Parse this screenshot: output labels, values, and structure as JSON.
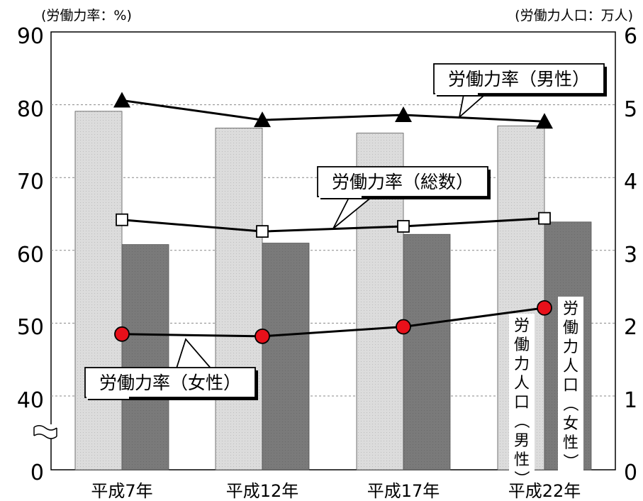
{
  "chart_data": {
    "type": "bar",
    "categories": [
      "平成7年",
      "平成12年",
      "平成17年",
      "平成22年"
    ],
    "title": "",
    "y_left": {
      "label": "(労働力率：%)",
      "range": [
        30,
        90
      ],
      "ticks": [
        90,
        80,
        70,
        60,
        50,
        40,
        0
      ],
      "axis_break": true
    },
    "y_right": {
      "label": "(労働力人口：万人)",
      "ticks": [
        6,
        5,
        4,
        3,
        2,
        1,
        0
      ]
    },
    "grid": true,
    "bar_series": [
      {
        "name": "労働力人口（男性）",
        "color": "#dcdcdc",
        "values": [
          79.1,
          76.8,
          76.1,
          77.1
        ]
      },
      {
        "name": "労働力人口（女性）",
        "color": "#7a7a7a",
        "values": [
          60.8,
          61.0,
          62.2,
          63.9
        ]
      }
    ],
    "line_series": [
      {
        "name": "労働力率（男性）",
        "marker": "triangle",
        "values": [
          80.6,
          77.9,
          78.6,
          77.7
        ]
      },
      {
        "name": "労働力率（総数）",
        "marker": "square",
        "values": [
          64.2,
          62.6,
          63.3,
          64.4
        ]
      },
      {
        "name": "労働力率（女性）",
        "marker": "circle",
        "color": "#e8101a",
        "values": [
          48.5,
          48.2,
          49.5,
          52.1
        ]
      }
    ]
  }
}
